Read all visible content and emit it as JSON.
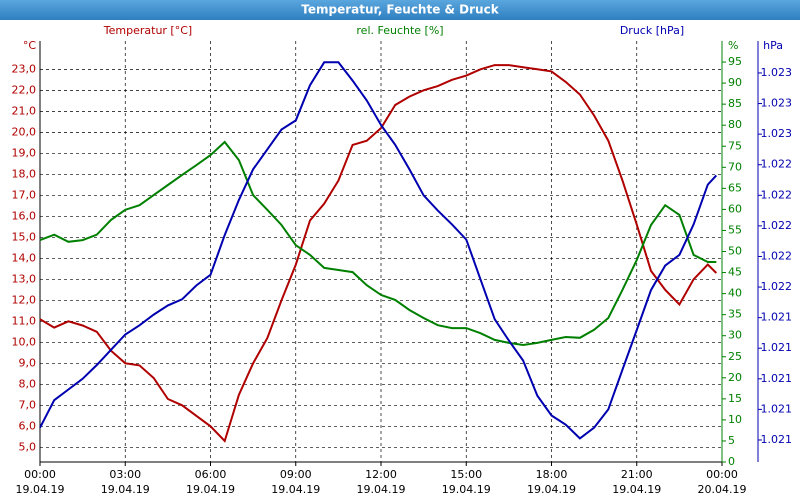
{
  "chart_data": {
    "type": "line",
    "title": "Temperatur, Feuchte & Druck",
    "y_unit": "°C",
    "y2_unit": "%",
    "y3_unit": "hPa",
    "x": [
      0,
      0.5,
      1,
      1.5,
      2,
      2.5,
      3,
      3.5,
      4,
      4.5,
      5,
      5.5,
      6,
      6.5,
      7,
      7.5,
      8,
      8.5,
      9,
      9.5,
      10,
      10.5,
      11,
      11.5,
      12,
      12.5,
      13,
      13.5,
      14,
      14.5,
      15,
      15.5,
      16,
      16.5,
      17,
      17.5,
      18,
      18.5,
      19,
      19.5,
      20,
      20.5,
      21,
      21.5,
      22,
      22.5,
      23,
      23.5,
      23.8
    ],
    "xlim": [
      0,
      24
    ],
    "xticks": [
      {
        "value": 0,
        "label": "00:00",
        "date": "19.04.19"
      },
      {
        "value": 3,
        "label": "03:00",
        "date": "19.04.19"
      },
      {
        "value": 6,
        "label": "06:00",
        "date": "19.04.19"
      },
      {
        "value": 9,
        "label": "09:00",
        "date": "19.04.19"
      },
      {
        "value": 12,
        "label": "12:00",
        "date": "19.04.19"
      },
      {
        "value": 15,
        "label": "15:00",
        "date": "19.04.19"
      },
      {
        "value": 18,
        "label": "18:00",
        "date": "19.04.19"
      },
      {
        "value": 21,
        "label": "21:00",
        "date": "19.04.19"
      },
      {
        "value": 24,
        "label": "00:00",
        "date": "20.04.19"
      }
    ],
    "ylim": [
      4.3,
      24.35
    ],
    "yticks": [
      {
        "value": 5,
        "label": "5,0"
      },
      {
        "value": 6,
        "label": "6,0"
      },
      {
        "value": 7,
        "label": "7,0"
      },
      {
        "value": 8,
        "label": "8,0"
      },
      {
        "value": 9,
        "label": "9,0"
      },
      {
        "value": 10,
        "label": "10,0"
      },
      {
        "value": 11,
        "label": "11,0"
      },
      {
        "value": 12,
        "label": "12,0"
      },
      {
        "value": 13,
        "label": "13,0"
      },
      {
        "value": 14,
        "label": "14,0"
      },
      {
        "value": 15,
        "label": "15,0"
      },
      {
        "value": 16,
        "label": "16,0"
      },
      {
        "value": 17,
        "label": "17,0"
      },
      {
        "value": 18,
        "label": "18,0"
      },
      {
        "value": 19,
        "label": "19,0"
      },
      {
        "value": 20,
        "label": "20,0"
      },
      {
        "value": 21,
        "label": "21,0"
      },
      {
        "value": 22,
        "label": "22,0"
      },
      {
        "value": 23,
        "label": "23,0"
      }
    ],
    "y2lim": [
      0,
      100
    ],
    "y2ticks": [
      0,
      5,
      10,
      15,
      20,
      25,
      30,
      35,
      40,
      45,
      50,
      55,
      60,
      65,
      70,
      75,
      80,
      85,
      90,
      95
    ],
    "y3lim": [
      1020.456,
      1023.209
    ],
    "y3ticks": [
      {
        "value": 1020.6,
        "label": "1.021"
      },
      {
        "value": 1020.8,
        "label": "1.021"
      },
      {
        "value": 1021.0,
        "label": "1.021"
      },
      {
        "value": 1021.2,
        "label": "1.021"
      },
      {
        "value": 1021.4,
        "label": "1.021"
      },
      {
        "value": 1021.6,
        "label": "1.022"
      },
      {
        "value": 1021.8,
        "label": "1.022"
      },
      {
        "value": 1022.0,
        "label": "1.022"
      },
      {
        "value": 1022.2,
        "label": "1.022"
      },
      {
        "value": 1022.4,
        "label": "1.022"
      },
      {
        "value": 1022.6,
        "label": "1.023"
      },
      {
        "value": 1022.8,
        "label": "1.023"
      },
      {
        "value": 1023.0,
        "label": "1.023"
      }
    ],
    "grid": true,
    "series": [
      {
        "name": "Temperatur [°C]",
        "color": "#b00000",
        "axis": "y",
        "values": [
          11.1,
          10.7,
          11.0,
          10.8,
          10.5,
          9.6,
          9.0,
          8.9,
          8.3,
          7.3,
          7.0,
          6.5,
          6.0,
          5.3,
          7.5,
          9.0,
          10.2,
          12.0,
          13.7,
          15.8,
          16.6,
          17.7,
          19.4,
          19.6,
          20.2,
          21.3,
          21.7,
          22.0,
          22.2,
          22.5,
          22.7,
          23.0,
          23.2,
          23.2,
          23.1,
          23.0,
          22.9,
          22.4,
          21.8,
          20.8,
          19.6,
          17.7,
          15.6,
          13.4,
          12.5,
          11.8,
          13.0,
          13.7,
          13.3
        ]
      },
      {
        "name": "rel. Feuchte [%]",
        "color": "#008000",
        "axis": "y2",
        "values": [
          52.7,
          54,
          52.3,
          52.7,
          54,
          57.5,
          59.9,
          61,
          63.4,
          65.8,
          68.2,
          70.5,
          72.9,
          76,
          71.7,
          63.4,
          59.9,
          56.3,
          51.5,
          49.2,
          46.1,
          45.6,
          45.1,
          42,
          39.7,
          38.5,
          36.1,
          34.2,
          32.5,
          31.8,
          31.8,
          30.6,
          29,
          28.3,
          27.8,
          28.3,
          29,
          29.7,
          29.5,
          31.4,
          34.2,
          40.9,
          48,
          56.3,
          61,
          58.7,
          49.2,
          47.5,
          47.5
        ]
      },
      {
        "name": "Druck [hPa]",
        "color": "#0000b0",
        "axis": "y3",
        "values": [
          1020.68,
          1020.86,
          1020.93,
          1021.0,
          1021.09,
          1021.19,
          1021.29,
          1021.35,
          1021.42,
          1021.48,
          1021.52,
          1021.61,
          1021.68,
          1021.94,
          1022.17,
          1022.37,
          1022.5,
          1022.63,
          1022.69,
          1022.92,
          1023.07,
          1023.07,
          1022.95,
          1022.82,
          1022.66,
          1022.53,
          1022.37,
          1022.2,
          1022.1,
          1022.01,
          1021.91,
          1021.65,
          1021.39,
          1021.25,
          1021.12,
          1020.89,
          1020.76,
          1020.7,
          1020.61,
          1020.68,
          1020.8,
          1021.06,
          1021.32,
          1021.58,
          1021.74,
          1021.81,
          1022.01,
          1022.27,
          1022.33
        ]
      }
    ]
  }
}
